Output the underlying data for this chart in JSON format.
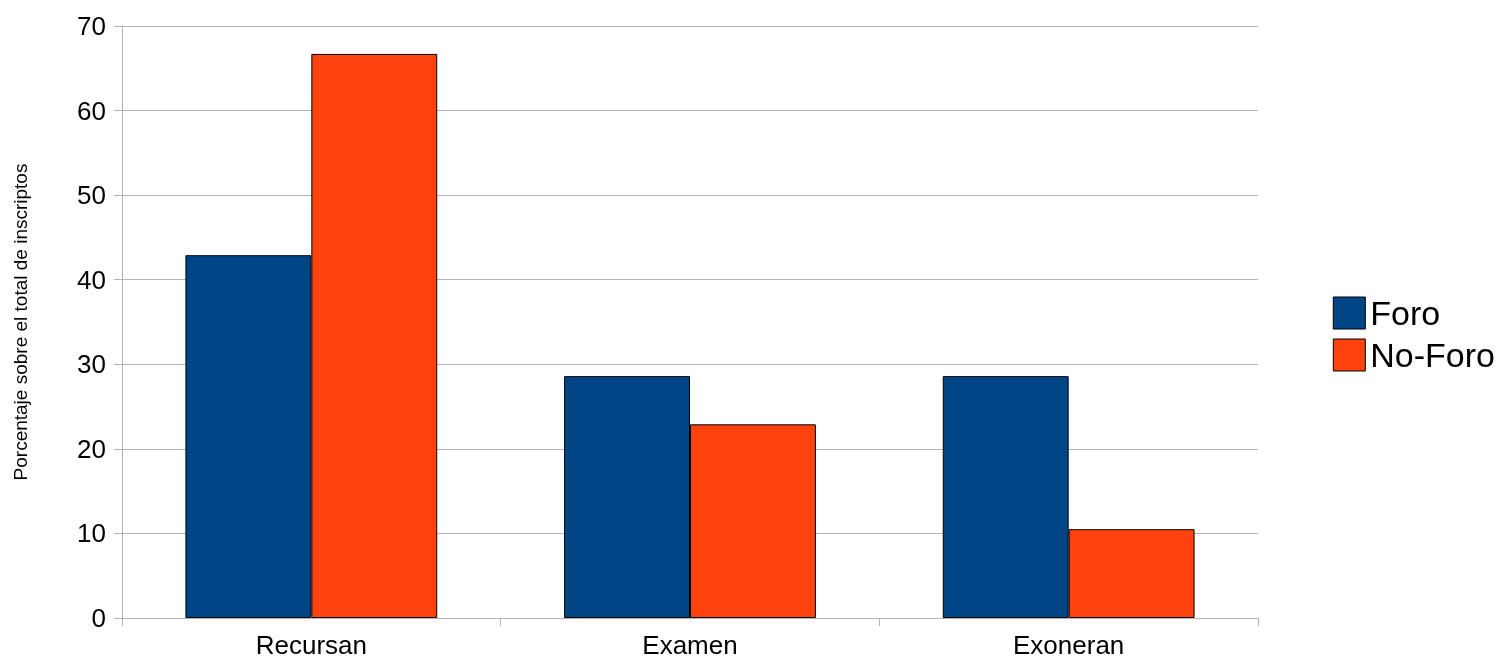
{
  "chart_data": {
    "type": "bar",
    "ylabel": "Porcentaje sobre el total de inscriptos",
    "categories": [
      "Recursan",
      "Examen",
      "Exoneran"
    ],
    "series": [
      {
        "name": "Foro",
        "color": "#004586",
        "values": [
          42.9,
          28.6,
          28.6
        ]
      },
      {
        "name": "No-Foro",
        "color": "#ff420e",
        "values": [
          66.7,
          22.9,
          10.5
        ]
      }
    ],
    "ylim": [
      0,
      70
    ],
    "yticks": [
      0,
      10,
      20,
      30,
      40,
      50,
      60,
      70
    ],
    "grid": "y",
    "legend": "right"
  }
}
